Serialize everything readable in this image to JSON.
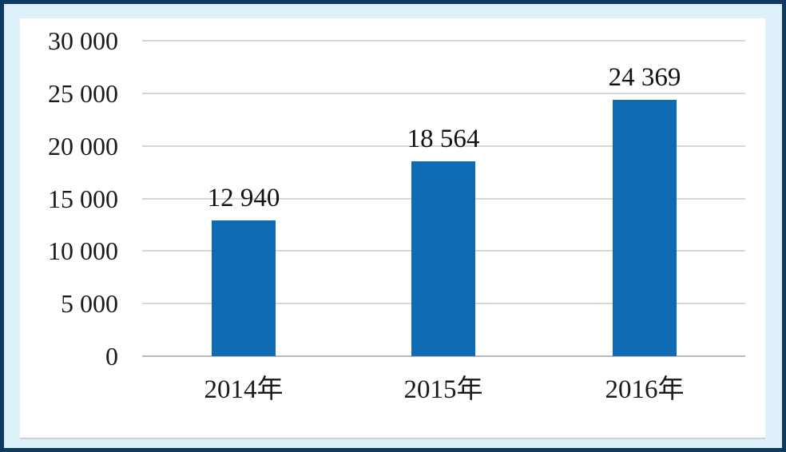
{
  "chart_data": {
    "type": "bar",
    "title": "",
    "xlabel": "",
    "ylabel": "",
    "categories": [
      "2014年",
      "2015年",
      "2016年"
    ],
    "values": [
      12940,
      18564,
      24369
    ],
    "value_labels": [
      "12 940",
      "18 564",
      "24 369"
    ],
    "y_ticks": [
      0,
      5000,
      10000,
      15000,
      20000,
      25000,
      30000
    ],
    "y_tick_labels": [
      "0",
      "5 000",
      "10 000",
      "15 000",
      "20 000",
      "25 000",
      "30 000"
    ],
    "ylim": [
      0,
      30000
    ],
    "grid": true,
    "legend_position": "none",
    "colors": {
      "bar": "#0e6bb4",
      "frame_border": "#0d3a5e",
      "frame_background": "#def0fa",
      "plot_background": "#ffffff",
      "gridline": "#d6d6d6",
      "axis_line": "#b9b9b9",
      "panel_bottom_border": "#cdd1d5",
      "label_text": "#1a1a1a"
    }
  }
}
